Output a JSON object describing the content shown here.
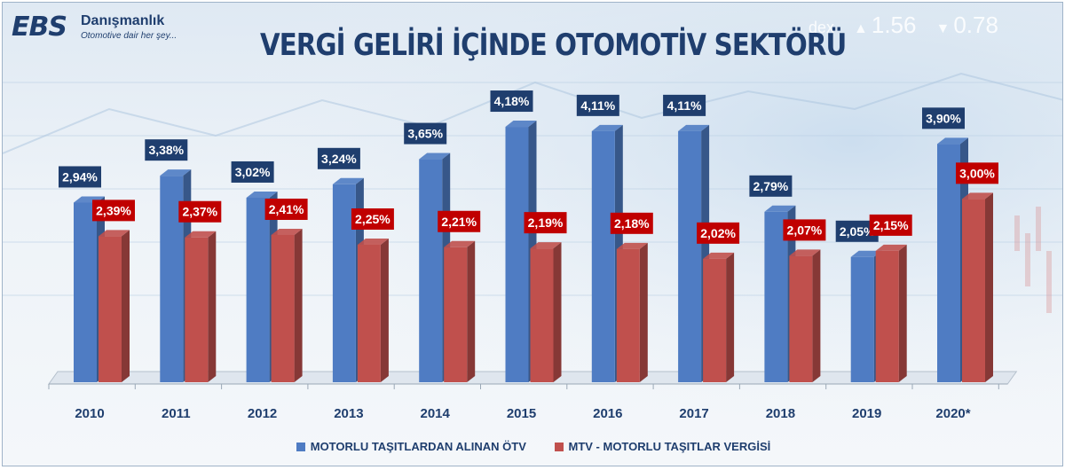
{
  "header": {
    "logo_mark": "EBS",
    "logo_name": "Danışmanlık",
    "logo_tagline": "Otomotive dair her şey...",
    "title": "VERGİ GELİRİ İÇİNDE OTOMOTİV SEKTÖRÜ"
  },
  "background_ticker": {
    "label": "dex",
    "up_arrow": "▲",
    "value_1": "1.56",
    "down_arrow": "▼",
    "value_2": "0.78"
  },
  "colors": {
    "title": "#1f3e6e",
    "series_otv": "#4f7cc3",
    "series_mtv": "#c0504d",
    "label_otv_bg": "#1f3e6e",
    "label_mtv_bg": "#c00000"
  },
  "chart_data": {
    "type": "bar",
    "title": "VERGİ GELİRİ İÇİNDE OTOMOTİV SEKTÖRÜ",
    "categories": [
      "2010",
      "2011",
      "2012",
      "2013",
      "2014",
      "2015",
      "2016",
      "2017",
      "2018",
      "2019",
      "2020*"
    ],
    "series": [
      {
        "name": "MOTORLU TAŞITLARDAN ALINAN ÖTV",
        "values": [
          2.94,
          3.38,
          3.02,
          3.24,
          3.65,
          4.18,
          4.11,
          4.11,
          2.79,
          2.05,
          3.9
        ],
        "labels": [
          "2,94%",
          "3,38%",
          "3,02%",
          "3,24%",
          "3,65%",
          "4,18%",
          "4,11%",
          "4,11%",
          "2,79%",
          "2,05%",
          "3,90%"
        ]
      },
      {
        "name": "MTV - MOTORLU TAŞITLAR VERGİSİ",
        "values": [
          2.39,
          2.37,
          2.41,
          2.25,
          2.21,
          2.19,
          2.18,
          2.02,
          2.07,
          2.15,
          3.0
        ],
        "labels": [
          "2,39%",
          "2,37%",
          "2,41%",
          "2,25%",
          "2,21%",
          "2,19%",
          "2,18%",
          "2,02%",
          "2,07%",
          "2,15%",
          "3,00%"
        ]
      }
    ],
    "xlabel": "",
    "ylabel": "",
    "ylim": [
      0,
      4.5
    ],
    "grid": false,
    "legend": "bottom-center"
  }
}
